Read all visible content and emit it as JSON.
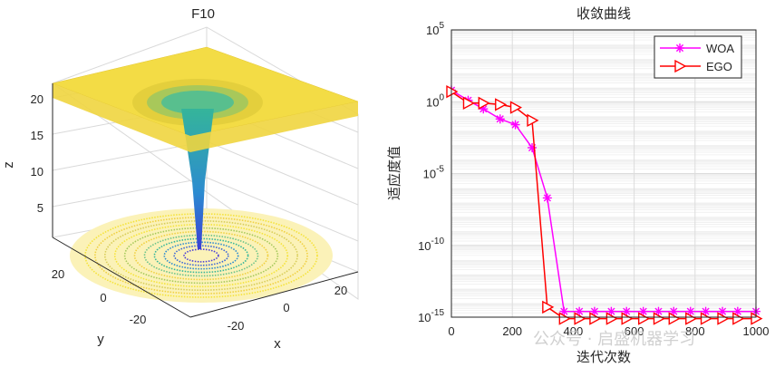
{
  "left_plot": {
    "title": "F10",
    "xlabel": "x",
    "ylabel": "y",
    "zlabel": "z",
    "z_ticks": [
      "5",
      "10",
      "15",
      "20"
    ],
    "x_ticks": [
      "-20",
      "0",
      "20"
    ],
    "y_ticks": [
      "20",
      "0",
      "-20"
    ],
    "colors": {
      "high": "#f5e33a",
      "mid": "#35b59a",
      "low": "#3b66d6"
    }
  },
  "chart_data": {
    "type": "line",
    "title": "收敛曲线",
    "xlabel": "迭代次数",
    "ylabel": "适应度值",
    "yscale": "log",
    "xlim": [
      0,
      1000
    ],
    "ylim_exp": [
      -15,
      5
    ],
    "x_tick_labels": [
      "0",
      "200",
      "400",
      "600",
      "800",
      "1000"
    ],
    "y_tick_base": "10",
    "y_tick_exps": [
      "5",
      "0",
      "-5",
      "-10",
      "-15"
    ],
    "legend_location": "top-right",
    "series": [
      {
        "name": "WOA",
        "color": "#ff00ff",
        "marker": "asterisk",
        "x": [
          0,
          55,
          105,
          160,
          210,
          265,
          315,
          370,
          420,
          470,
          525,
          575,
          630,
          680,
          730,
          785,
          835,
          890,
          940,
          1000
        ],
        "log10_y": [
          0.8,
          0.1,
          -0.5,
          -1.2,
          -1.6,
          -3.2,
          -6.7,
          -14.6,
          -14.6,
          -14.6,
          -14.6,
          -14.6,
          -14.6,
          -14.6,
          -14.6,
          -14.6,
          -14.6,
          -14.6,
          -14.6,
          -14.6
        ]
      },
      {
        "name": "EGO",
        "color": "#ff0000",
        "marker": "triangle-right",
        "x": [
          0,
          55,
          105,
          160,
          210,
          265,
          315,
          370,
          420,
          470,
          525,
          575,
          630,
          680,
          730,
          785,
          835,
          890,
          940,
          1000
        ],
        "log10_y": [
          0.7,
          -0.1,
          -0.1,
          -0.2,
          -0.4,
          -1.3,
          -14.3,
          -15.1,
          -15.1,
          -15.1,
          -15.1,
          -15.1,
          -15.1,
          -15.1,
          -15.1,
          -15.1,
          -15.1,
          -15.1,
          -15.1,
          -15.1
        ]
      }
    ]
  },
  "watermark": "公众号 · 启盛机器学习"
}
